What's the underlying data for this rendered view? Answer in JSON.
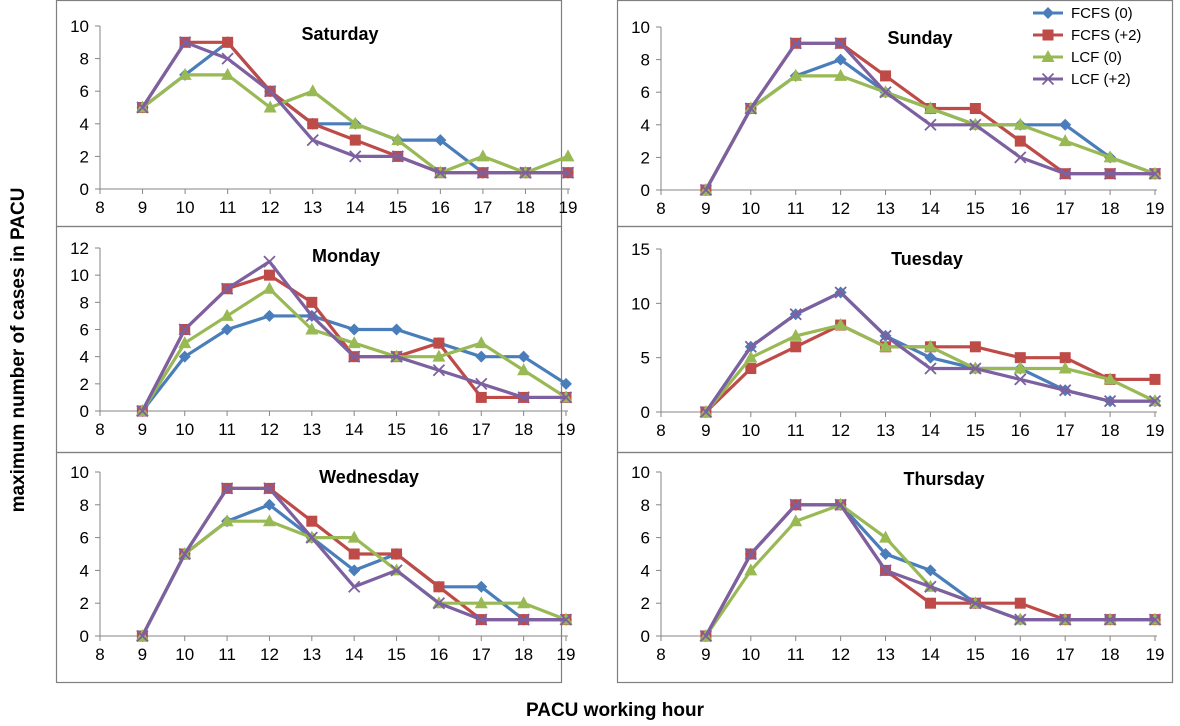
{
  "figure": {
    "xlabel": "PACU  working hour",
    "ylabel": "maximum number of cases in PACU"
  },
  "legend": {
    "placement": "top-right",
    "entries": [
      "FCFS (0)",
      "FCFS (+2)",
      "LCF (0)",
      "LCF (+2)"
    ]
  },
  "series_styles": [
    {
      "name": "FCFS (0)",
      "color": "#4A7EBB",
      "marker": "diamond"
    },
    {
      "name": "FCFS (+2)",
      "color": "#BE4B48",
      "marker": "square"
    },
    {
      "name": "LCF (0)",
      "color": "#98B954",
      "marker": "triangle"
    },
    {
      "name": "LCF (+2)",
      "color": "#7D60A0",
      "marker": "x"
    }
  ],
  "chart_data": [
    {
      "type": "line",
      "title": "Saturday",
      "x": [
        9,
        10,
        11,
        12,
        13,
        14,
        15,
        16,
        17,
        18,
        19
      ],
      "xticks": [
        8,
        9,
        10,
        11,
        12,
        13,
        14,
        15,
        16,
        17,
        18,
        19
      ],
      "ylim": [
        0,
        10
      ],
      "yticks": [
        0,
        2,
        4,
        6,
        8,
        10
      ],
      "series": [
        {
          "name": "FCFS (0)",
          "values": [
            5,
            7,
            9,
            6,
            4,
            4,
            3,
            3,
            1,
            1,
            1
          ]
        },
        {
          "name": "FCFS (+2)",
          "values": [
            5,
            9,
            9,
            6,
            4,
            3,
            2,
            1,
            1,
            1,
            1
          ]
        },
        {
          "name": "LCF (0)",
          "values": [
            5,
            7,
            7,
            5,
            6,
            4,
            3,
            1,
            2,
            1,
            2
          ]
        },
        {
          "name": "LCF (+2)",
          "values": [
            5,
            9,
            8,
            6,
            3,
            2,
            2,
            1,
            1,
            1,
            1
          ]
        }
      ]
    },
    {
      "type": "line",
      "title": "Sunday",
      "x": [
        9,
        10,
        11,
        12,
        13,
        14,
        15,
        16,
        17,
        18,
        19
      ],
      "xticks": [
        8,
        9,
        10,
        11,
        12,
        13,
        14,
        15,
        16,
        17,
        18,
        19
      ],
      "ylim": [
        0,
        10
      ],
      "yticks": [
        0,
        2,
        4,
        6,
        8,
        10
      ],
      "series": [
        {
          "name": "FCFS (0)",
          "values": [
            0,
            5,
            7,
            8,
            6,
            5,
            4,
            4,
            4,
            2,
            1
          ]
        },
        {
          "name": "FCFS (+2)",
          "values": [
            0,
            5,
            9,
            9,
            7,
            5,
            5,
            3,
            1,
            1,
            1
          ]
        },
        {
          "name": "LCF (0)",
          "values": [
            0,
            5,
            7,
            7,
            6,
            5,
            4,
            4,
            3,
            2,
            1
          ]
        },
        {
          "name": "LCF (+2)",
          "values": [
            0,
            5,
            9,
            9,
            6,
            4,
            4,
            2,
            1,
            1,
            1
          ]
        }
      ]
    },
    {
      "type": "line",
      "title": "Monday",
      "x": [
        9,
        10,
        11,
        12,
        13,
        14,
        15,
        16,
        17,
        18,
        19
      ],
      "xticks": [
        8,
        9,
        10,
        11,
        12,
        13,
        14,
        15,
        16,
        17,
        18,
        19
      ],
      "ylim": [
        0,
        12
      ],
      "yticks": [
        0,
        2,
        4,
        6,
        8,
        10,
        12
      ],
      "series": [
        {
          "name": "FCFS (0)",
          "values": [
            0,
            4,
            6,
            7,
            7,
            6,
            6,
            5,
            4,
            4,
            2
          ]
        },
        {
          "name": "FCFS (+2)",
          "values": [
            0,
            6,
            9,
            10,
            8,
            4,
            4,
            5,
            1,
            1,
            1
          ]
        },
        {
          "name": "LCF (0)",
          "values": [
            0,
            5,
            7,
            9,
            6,
            5,
            4,
            4,
            5,
            3,
            1
          ]
        },
        {
          "name": "LCF (+2)",
          "values": [
            0,
            6,
            9,
            11,
            7,
            4,
            4,
            3,
            2,
            1,
            1
          ]
        }
      ]
    },
    {
      "type": "line",
      "title": "Tuesday",
      "x": [
        9,
        10,
        11,
        12,
        13,
        14,
        15,
        16,
        17,
        18,
        19
      ],
      "xticks": [
        8,
        9,
        10,
        11,
        12,
        13,
        14,
        15,
        16,
        17,
        18,
        19
      ],
      "ylim": [
        0,
        15
      ],
      "yticks": [
        0,
        5,
        10,
        15
      ],
      "series": [
        {
          "name": "FCFS (0)",
          "values": [
            0,
            6,
            9,
            11,
            7,
            5,
            4,
            4,
            2,
            1,
            1
          ]
        },
        {
          "name": "FCFS (+2)",
          "values": [
            0,
            4,
            6,
            8,
            6,
            6,
            6,
            5,
            5,
            3,
            3
          ]
        },
        {
          "name": "LCF (0)",
          "values": [
            0,
            5,
            7,
            8,
            6,
            6,
            4,
            4,
            4,
            3,
            1
          ]
        },
        {
          "name": "LCF (+2)",
          "values": [
            0,
            6,
            9,
            11,
            7,
            4,
            4,
            3,
            2,
            1,
            1
          ]
        }
      ]
    },
    {
      "type": "line",
      "title": "Wednesday",
      "x": [
        9,
        10,
        11,
        12,
        13,
        14,
        15,
        16,
        17,
        18,
        19
      ],
      "xticks": [
        8,
        9,
        10,
        11,
        12,
        13,
        14,
        15,
        16,
        17,
        18,
        19
      ],
      "ylim": [
        0,
        10
      ],
      "yticks": [
        0,
        2,
        4,
        6,
        8,
        10
      ],
      "series": [
        {
          "name": "FCFS (0)",
          "values": [
            0,
            5,
            7,
            8,
            6,
            4,
            5,
            3,
            3,
            1,
            1
          ]
        },
        {
          "name": "FCFS (+2)",
          "values": [
            0,
            5,
            9,
            9,
            7,
            5,
            5,
            3,
            1,
            1,
            1
          ]
        },
        {
          "name": "LCF (0)",
          "values": [
            0,
            5,
            7,
            7,
            6,
            6,
            4,
            2,
            2,
            2,
            1
          ]
        },
        {
          "name": "LCF (+2)",
          "values": [
            0,
            5,
            9,
            9,
            6,
            3,
            4,
            2,
            1,
            1,
            1
          ]
        }
      ]
    },
    {
      "type": "line",
      "title": "Thursday",
      "x": [
        9,
        10,
        11,
        12,
        13,
        14,
        15,
        16,
        17,
        18,
        19
      ],
      "xticks": [
        8,
        9,
        10,
        11,
        12,
        13,
        14,
        15,
        16,
        17,
        18,
        19
      ],
      "ylim": [
        0,
        10
      ],
      "yticks": [
        0,
        2,
        4,
        6,
        8,
        10
      ],
      "series": [
        {
          "name": "FCFS (0)",
          "values": [
            0,
            5,
            8,
            8,
            5,
            4,
            2,
            1,
            1,
            1,
            1
          ]
        },
        {
          "name": "FCFS (+2)",
          "values": [
            0,
            5,
            8,
            8,
            4,
            2,
            2,
            2,
            1,
            1,
            1
          ]
        },
        {
          "name": "LCF (0)",
          "values": [
            0,
            4,
            7,
            8,
            6,
            3,
            2,
            1,
            1,
            1,
            1
          ]
        },
        {
          "name": "LCF (+2)",
          "values": [
            0,
            5,
            8,
            8,
            4,
            3,
            2,
            1,
            1,
            1,
            1
          ]
        }
      ]
    }
  ]
}
